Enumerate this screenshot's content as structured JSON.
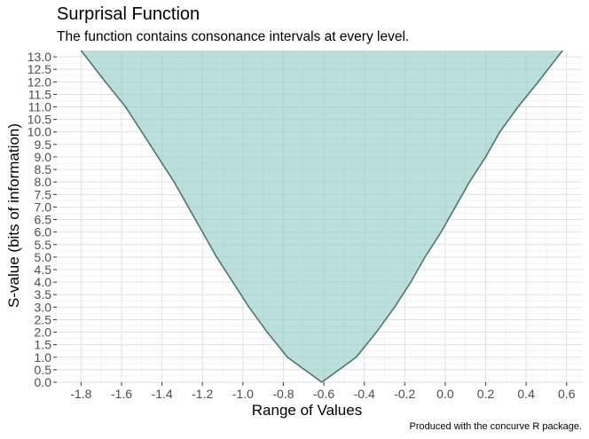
{
  "chart_data": {
    "type": "area",
    "title": "Surprisal Function",
    "subtitle": "The function contains consonance intervals at every level.",
    "xlabel": "Range of Values",
    "ylabel": "S-value (bits of information)",
    "caption": "Produced with the concurve R package.",
    "xlim": [
      -1.92,
      0.68
    ],
    "ylim": [
      0,
      13.25
    ],
    "x_ticks": [
      "-1.8",
      "-1.6",
      "-1.4",
      "-1.2",
      "-1.0",
      "-0.8",
      "-0.6",
      "-0.4",
      "-0.2",
      "0.0",
      "0.2",
      "0.4",
      "0.6"
    ],
    "y_ticks": [
      "0.0",
      "0.5",
      "1.0",
      "1.5",
      "2.0",
      "2.5",
      "3.0",
      "3.5",
      "4.0",
      "4.5",
      "5.0",
      "5.5",
      "6.0",
      "6.5",
      "7.0",
      "7.5",
      "8.0",
      "8.5",
      "9.0",
      "9.5",
      "10.0",
      "10.5",
      "11.0",
      "11.5",
      "12.0",
      "12.5",
      "13.0"
    ],
    "grid": true,
    "colors": {
      "fill": "#8ec9c4",
      "line": "#3a5f5c"
    },
    "series": [
      {
        "points": [
          {
            "s": 0.0,
            "lower": -0.61,
            "upper": -0.61
          },
          {
            "s": 1.0,
            "lower": -0.78,
            "upper": -0.44
          },
          {
            "s": 2.0,
            "lower": -0.88,
            "upper": -0.34
          },
          {
            "s": 3.0,
            "lower": -0.97,
            "upper": -0.25
          },
          {
            "s": 4.0,
            "lower": -1.05,
            "upper": -0.17
          },
          {
            "s": 5.0,
            "lower": -1.13,
            "upper": -0.1
          },
          {
            "s": 6.0,
            "lower": -1.2,
            "upper": -0.02
          },
          {
            "s": 7.0,
            "lower": -1.27,
            "upper": 0.05
          },
          {
            "s": 8.0,
            "lower": -1.34,
            "upper": 0.12
          },
          {
            "s": 9.0,
            "lower": -1.42,
            "upper": 0.2
          },
          {
            "s": 10.0,
            "lower": -1.5,
            "upper": 0.27
          },
          {
            "s": 11.0,
            "lower": -1.58,
            "upper": 0.36
          },
          {
            "s": 12.0,
            "lower": -1.68,
            "upper": 0.46
          },
          {
            "s": 13.25,
            "lower": -1.8,
            "upper": 0.58
          }
        ]
      }
    ]
  }
}
